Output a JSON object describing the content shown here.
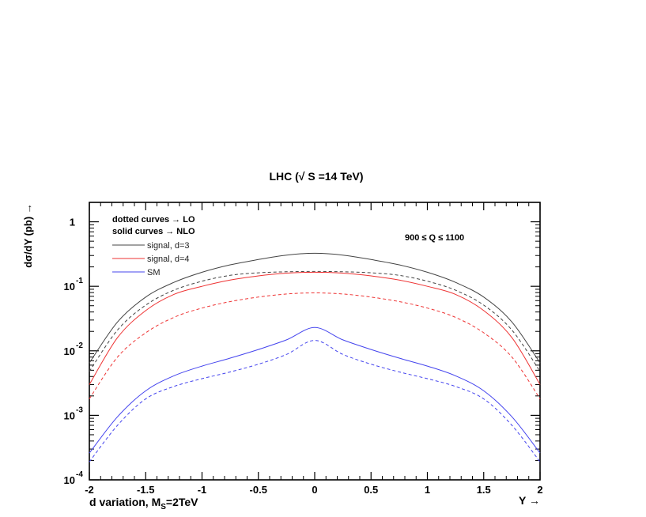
{
  "chart_data": {
    "type": "line",
    "title": "LHC (√ S =14 TeV)",
    "ylabel": "dσ/dY (pb) →",
    "xlabel": "Y →",
    "footer_label": {
      "main": "d variation, M",
      "sub": "S",
      "tail": "=2TeV"
    },
    "annotations": {
      "lo_note": "dotted curves → LO",
      "nlo_note": "solid curves → NLO",
      "q_range": "900 ≤ Q ≤ 1100"
    },
    "xlim": [
      -2,
      2
    ],
    "ylim": [
      0.0001,
      2
    ],
    "yscale": "log",
    "grid": false,
    "legend_position": "top-left",
    "x_ticks": [
      "-2",
      "-1.5",
      "-1",
      "-0.5",
      "0",
      "0.5",
      "1",
      "1.5",
      "2"
    ],
    "x_tick_values": [
      -2,
      -1.5,
      -1,
      -0.5,
      0,
      0.5,
      1,
      1.5,
      2
    ],
    "y_ticks": [
      {
        "value": 1,
        "base": "1",
        "exp": ""
      },
      {
        "value": 0.1,
        "base": "10",
        "exp": "-1"
      },
      {
        "value": 0.01,
        "base": "10",
        "exp": "-2"
      },
      {
        "value": 0.001,
        "base": "10",
        "exp": "-3"
      },
      {
        "value": 0.0001,
        "base": "10",
        "exp": "-4"
      }
    ],
    "x": [
      -2,
      -1.75,
      -1.5,
      -1.25,
      -1,
      -0.75,
      -0.5,
      -0.25,
      0,
      0.25,
      0.5,
      0.75,
      1,
      1.25,
      1.5,
      1.75,
      2
    ],
    "series": [
      {
        "name": "signal, d=3",
        "order": "NLO",
        "style": "solid",
        "color": "#444444",
        "values": [
          0.0065,
          0.028,
          0.068,
          0.115,
          0.165,
          0.215,
          0.26,
          0.305,
          0.325,
          0.305,
          0.26,
          0.215,
          0.165,
          0.115,
          0.068,
          0.028,
          0.0065
        ]
      },
      {
        "name": "signal, d=3",
        "order": "LO",
        "style": "dashed",
        "color": "#444444",
        "values": [
          0.0048,
          0.021,
          0.051,
          0.087,
          0.12,
          0.148,
          0.162,
          0.168,
          0.17,
          0.168,
          0.162,
          0.148,
          0.12,
          0.087,
          0.051,
          0.021,
          0.0048
        ]
      },
      {
        "name": "signal, d=4",
        "order": "NLO",
        "style": "solid",
        "color": "#ee3333",
        "values": [
          0.003,
          0.016,
          0.042,
          0.075,
          0.1,
          0.125,
          0.145,
          0.16,
          0.165,
          0.16,
          0.145,
          0.125,
          0.1,
          0.075,
          0.042,
          0.016,
          0.003
        ]
      },
      {
        "name": "signal, d=4",
        "order": "LO",
        "style": "dashed",
        "color": "#ee3333",
        "values": [
          0.0018,
          0.008,
          0.019,
          0.033,
          0.046,
          0.058,
          0.068,
          0.076,
          0.079,
          0.076,
          0.068,
          0.058,
          0.046,
          0.033,
          0.019,
          0.008,
          0.0018
        ]
      },
      {
        "name": "SM",
        "order": "NLO",
        "style": "solid",
        "color": "#4444ee",
        "values": [
          0.00026,
          0.00095,
          0.0024,
          0.0041,
          0.0058,
          0.0077,
          0.0105,
          0.0148,
          0.023,
          0.0148,
          0.0105,
          0.0077,
          0.0058,
          0.0041,
          0.0024,
          0.00095,
          0.00026
        ]
      },
      {
        "name": "SM",
        "order": "LO",
        "style": "dashed",
        "color": "#4444ee",
        "values": [
          0.00019,
          0.0007,
          0.0018,
          0.0028,
          0.0037,
          0.0047,
          0.0062,
          0.0088,
          0.0145,
          0.0088,
          0.0062,
          0.0047,
          0.0037,
          0.0028,
          0.0018,
          0.0007,
          0.00019
        ]
      }
    ],
    "legend": [
      {
        "label": "signal, d=3",
        "color": "#444444"
      },
      {
        "label": "signal, d=4",
        "color": "#ee3333"
      },
      {
        "label": "SM",
        "color": "#4444ee"
      }
    ]
  }
}
